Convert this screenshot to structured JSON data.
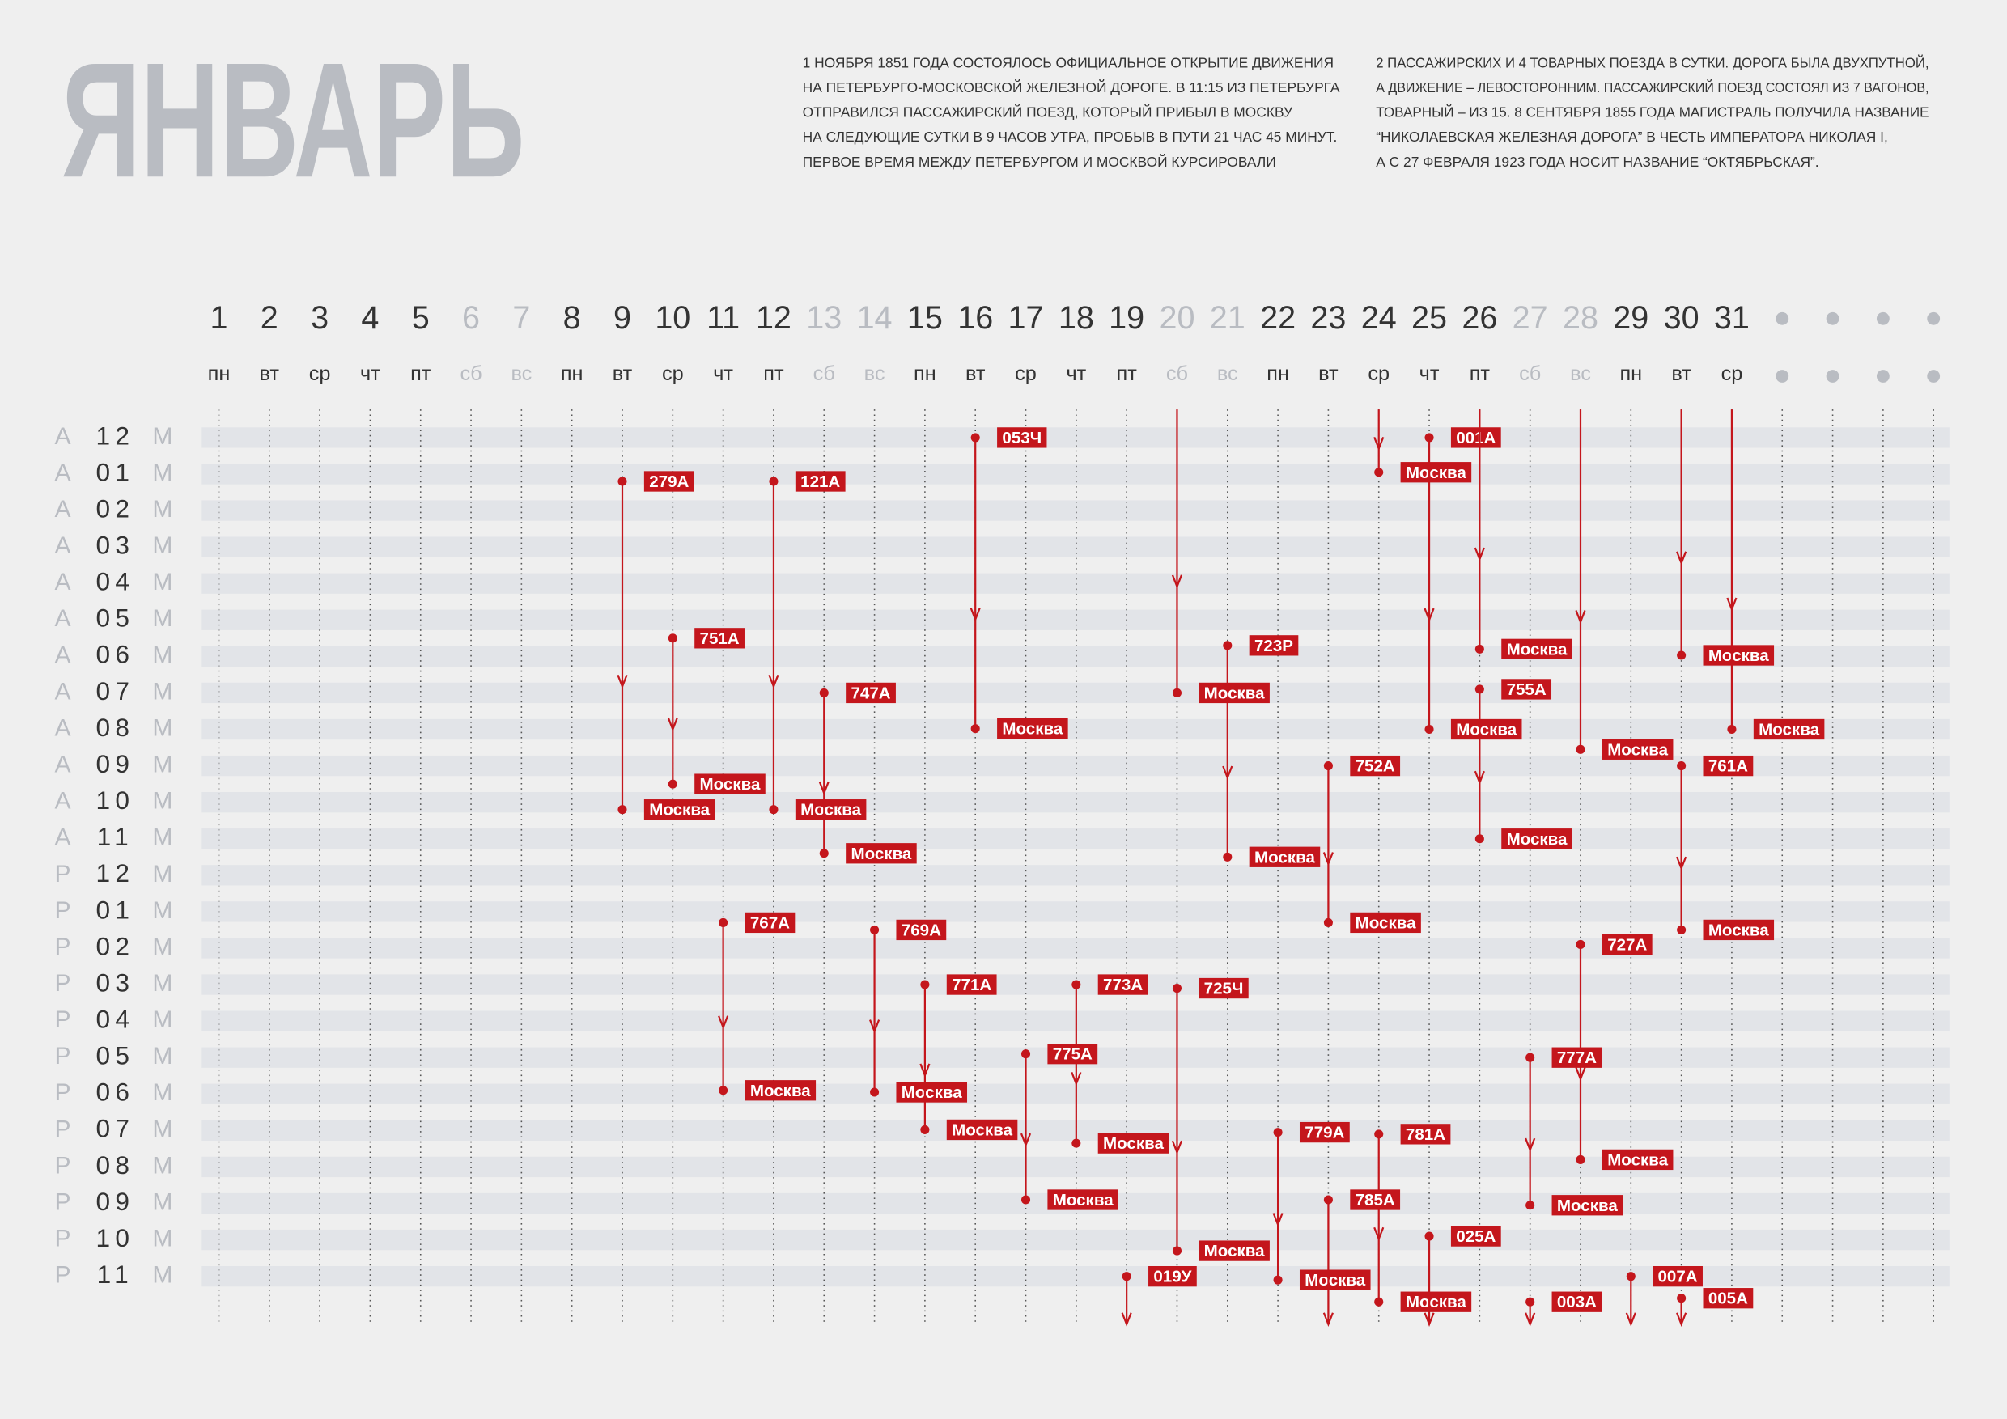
{
  "title": "ЯНВАРЬ",
  "intro": {
    "column1": [
      "1 НОЯБРЯ 1851 ГОДА СОСТОЯЛОСЬ ОФИЦИАЛЬНОЕ ОТКРЫТИЕ ДВИЖЕНИЯ",
      "НА ПЕТЕРБУРГО-МОСКОВСКОЙ ЖЕЛЕЗНОЙ ДОРОГЕ. В 11:15 ИЗ ПЕТЕРБУРГА",
      "ОТПРАВИЛСЯ ПАССАЖИРСКИЙ ПОЕЗД, КОТОРЫЙ ПРИБЫЛ В МОСКВУ",
      "НА СЛЕДУЮЩИЕ СУТКИ В 9 ЧАСОВ УТРА, ПРОБЫВ В ПУТИ 21 ЧАС 45 МИНУТ.",
      "ПЕРВОЕ ВРЕМЯ МЕЖДУ ПЕТЕРБУРГОМ И МОСКВОЙ КУРСИРОВАЛИ"
    ],
    "column2": [
      "2 ПАССАЖИРСКИХ И 4 ТОВАРНЫХ ПОЕЗДА В СУТКИ. ДОРОГА БЫЛА ДВУХПУТНОЙ,",
      "А ДВИЖЕНИЕ – ЛЕВОСТОРОННИМ. ПАССАЖИРСКИЙ ПОЕЗД СОСТОЯЛ ИЗ 7 ВАГОНОВ,",
      "ТОВАРНЫЙ – ИЗ 15. 8 СЕНТЯБРЯ 1855 ГОДА МАГИСТРАЛЬ ПОЛУЧИЛА НАЗВАНИЕ",
      "“НИКОЛАЕВСКАЯ ЖЕЛЕЗНАЯ ДОРОГА” В ЧЕСТЬ ИМПЕРАТОРА НИКОЛАЯ I,",
      "А С 27 ФЕВРАЛЯ 1923 ГОДА НОСИТ НАЗВАНИЕ “ОКТЯБРЬСКАЯ”."
    ]
  },
  "days": [
    {
      "n": 1,
      "wd": "пн",
      "weekend": false
    },
    {
      "n": 2,
      "wd": "вт",
      "weekend": false
    },
    {
      "n": 3,
      "wd": "ср",
      "weekend": false
    },
    {
      "n": 4,
      "wd": "чт",
      "weekend": false
    },
    {
      "n": 5,
      "wd": "пт",
      "weekend": false
    },
    {
      "n": 6,
      "wd": "сб",
      "weekend": true
    },
    {
      "n": 7,
      "wd": "вс",
      "weekend": true
    },
    {
      "n": 8,
      "wd": "пн",
      "weekend": false
    },
    {
      "n": 9,
      "wd": "вт",
      "weekend": false
    },
    {
      "n": 10,
      "wd": "ср",
      "weekend": false
    },
    {
      "n": 11,
      "wd": "чт",
      "weekend": false
    },
    {
      "n": 12,
      "wd": "пт",
      "weekend": false
    },
    {
      "n": 13,
      "wd": "сб",
      "weekend": true
    },
    {
      "n": 14,
      "wd": "вс",
      "weekend": true
    },
    {
      "n": 15,
      "wd": "пн",
      "weekend": false
    },
    {
      "n": 16,
      "wd": "вт",
      "weekend": false
    },
    {
      "n": 17,
      "wd": "ср",
      "weekend": false
    },
    {
      "n": 18,
      "wd": "чт",
      "weekend": false
    },
    {
      "n": 19,
      "wd": "пт",
      "weekend": false
    },
    {
      "n": 20,
      "wd": "сб",
      "weekend": true
    },
    {
      "n": 21,
      "wd": "вс",
      "weekend": true
    },
    {
      "n": 22,
      "wd": "пн",
      "weekend": false
    },
    {
      "n": 23,
      "wd": "вт",
      "weekend": false
    },
    {
      "n": 24,
      "wd": "ср",
      "weekend": false
    },
    {
      "n": 25,
      "wd": "чт",
      "weekend": false
    },
    {
      "n": 26,
      "wd": "пт",
      "weekend": false
    },
    {
      "n": 27,
      "wd": "сб",
      "weekend": true
    },
    {
      "n": 28,
      "wd": "вс",
      "weekend": true
    },
    {
      "n": 29,
      "wd": "пн",
      "weekend": false
    },
    {
      "n": 30,
      "wd": "вт",
      "weekend": false
    },
    {
      "n": 31,
      "wd": "ср",
      "weekend": false
    }
  ],
  "rows": [
    {
      "ap": "А",
      "h": "12",
      "m": "М"
    },
    {
      "ap": "А",
      "h": "01",
      "m": "М"
    },
    {
      "ap": "А",
      "h": "02",
      "m": "М"
    },
    {
      "ap": "А",
      "h": "03",
      "m": "М"
    },
    {
      "ap": "А",
      "h": "04",
      "m": "М"
    },
    {
      "ap": "А",
      "h": "05",
      "m": "М"
    },
    {
      "ap": "А",
      "h": "06",
      "m": "М"
    },
    {
      "ap": "А",
      "h": "07",
      "m": "М"
    },
    {
      "ap": "А",
      "h": "08",
      "m": "М"
    },
    {
      "ap": "А",
      "h": "09",
      "m": "М"
    },
    {
      "ap": "А",
      "h": "10",
      "m": "М"
    },
    {
      "ap": "А",
      "h": "11",
      "m": "М"
    },
    {
      "ap": "Р",
      "h": "12",
      "m": "М"
    },
    {
      "ap": "Р",
      "h": "01",
      "m": "М"
    },
    {
      "ap": "Р",
      "h": "02",
      "m": "М"
    },
    {
      "ap": "Р",
      "h": "03",
      "m": "М"
    },
    {
      "ap": "Р",
      "h": "04",
      "m": "М"
    },
    {
      "ap": "Р",
      "h": "05",
      "m": "М"
    },
    {
      "ap": "Р",
      "h": "06",
      "m": "М"
    },
    {
      "ap": "Р",
      "h": "07",
      "m": "М"
    },
    {
      "ap": "Р",
      "h": "08",
      "m": "М"
    },
    {
      "ap": "Р",
      "h": "09",
      "m": "М"
    },
    {
      "ap": "Р",
      "h": "10",
      "m": "М"
    },
    {
      "ap": "Р",
      "h": "11",
      "m": "М"
    }
  ],
  "trains": [
    {
      "day": 16,
      "from": 0,
      "to": 7.98,
      "label": "053Ч",
      "arrive": "Москва"
    },
    {
      "day": 9,
      "from": 1.2,
      "to": 10.2,
      "label": "279А",
      "arrive": "Москва"
    },
    {
      "day": 12,
      "from": 1.2,
      "to": 10.2,
      "label": "121А",
      "arrive": "Москва"
    },
    {
      "day": 10,
      "from": 5.5,
      "to": 9.5,
      "label": "751А",
      "arrive": "Москва"
    },
    {
      "day": 13,
      "from": 7.0,
      "to": 11.4,
      "label": "747А",
      "arrive": "Москва"
    },
    {
      "day": 21,
      "from": 5.7,
      "to": 11.5,
      "label": "723Р",
      "arrive": "Москва"
    },
    {
      "day": 20,
      "from": null,
      "to": 7.0,
      "arrive": "Москва"
    },
    {
      "day": 20,
      "from": 15.1,
      "to": 22.3,
      "label": "725Ч",
      "arrive": "Москва"
    },
    {
      "day": 24,
      "from": null,
      "to": 0.95,
      "arrive": "Москва"
    },
    {
      "day": 24,
      "from": 19.1,
      "to": 23.7,
      "label": "781А",
      "arrive": "Москва"
    },
    {
      "day": 25,
      "from": 0,
      "to": 8.0,
      "label": "001А",
      "arrive": "Москва"
    },
    {
      "day": 26,
      "from": null,
      "to": 5.8,
      "arrive": "Москва"
    },
    {
      "day": 26,
      "from": 6.9,
      "to": 11.0,
      "label": "755А",
      "arrive": "Москва"
    },
    {
      "day": 28,
      "from": null,
      "to": 8.55,
      "arrive": "Москва"
    },
    {
      "day": 28,
      "from": 13.9,
      "to": 19.8,
      "label": "727А",
      "arrive": "Москва"
    },
    {
      "day": 30,
      "from": null,
      "to": 5.97,
      "arrive": "Москва"
    },
    {
      "day": 30,
      "from": 9.0,
      "to": 13.5,
      "label": "761А",
      "arrive": "Москва"
    },
    {
      "day": 31,
      "from": null,
      "to": 8.0,
      "arrive": "Москва"
    },
    {
      "day": 23,
      "from": 9.0,
      "to": 13.3,
      "label": "752А",
      "arrive": "Москва"
    },
    {
      "day": 11,
      "from": 13.3,
      "to": 17.9,
      "label": "767А",
      "arrive": "Москва"
    },
    {
      "day": 14,
      "from": 13.5,
      "to": 17.95,
      "label": "769А",
      "arrive": "Москва"
    },
    {
      "day": 15,
      "from": 15.0,
      "to": 18.98,
      "label": "771А",
      "arrive": "Москва"
    },
    {
      "day": 18,
      "from": 15.0,
      "to": 19.35,
      "label": "773А",
      "arrive": "Москва"
    },
    {
      "day": 17,
      "from": 16.9,
      "to": 20.9,
      "label": "775А",
      "arrive": "Москва"
    },
    {
      "day": 27,
      "from": 17.0,
      "to": 21.05,
      "label": "777А",
      "arrive": "Москва"
    },
    {
      "day": 22,
      "from": 19.05,
      "to": 23.1,
      "label": "779А",
      "arrive": "Москва"
    },
    {
      "day": 23,
      "from": 20.9,
      "to": null,
      "label": "785А"
    },
    {
      "day": 25,
      "from": 21.9,
      "to": null,
      "label": "025А"
    },
    {
      "day": 19,
      "from": 23.0,
      "to": null,
      "label": "019У"
    },
    {
      "day": 27,
      "from": 23.7,
      "to": null,
      "label": "003А"
    },
    {
      "day": 29,
      "from": 23.0,
      "to": null,
      "label": "007А"
    },
    {
      "day": 30,
      "from": 23.6,
      "to": null,
      "label": "005А"
    }
  ]
}
